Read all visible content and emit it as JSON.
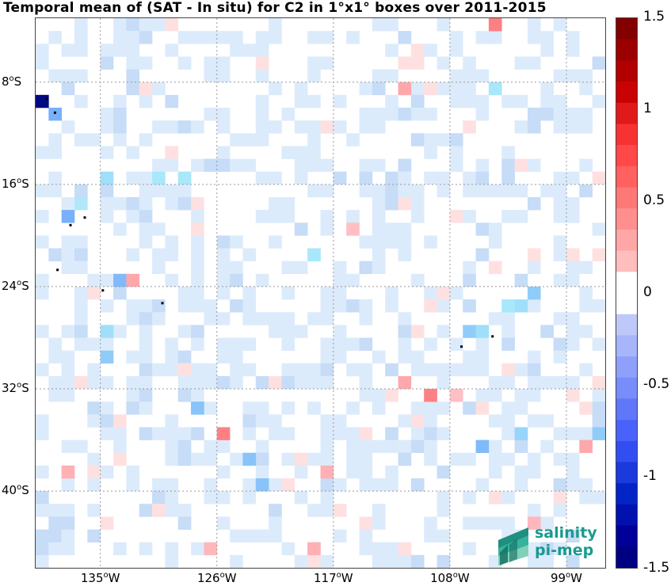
{
  "title": "Temporal mean of (SAT - In situ) for C2 in 1°x1° boxes over 2011-2015",
  "map": {
    "lon_range": [
      -140,
      -96
    ],
    "lat_range": [
      -46,
      -3
    ],
    "lon_ticks": [
      {
        "value": -135,
        "label": "135",
        "hemi": "W"
      },
      {
        "value": -126,
        "label": "126",
        "hemi": "W"
      },
      {
        "value": -117,
        "label": "117",
        "hemi": "W"
      },
      {
        "value": -108,
        "label": "108",
        "hemi": "W"
      },
      {
        "value": -99,
        "label": "99",
        "hemi": "W"
      }
    ],
    "lat_ticks": [
      {
        "value": -8,
        "label": "8",
        "hemi": "S"
      },
      {
        "value": -16,
        "label": "16",
        "hemi": "S"
      },
      {
        "value": -24,
        "label": "24",
        "hemi": "S"
      },
      {
        "value": -32,
        "label": "32",
        "hemi": "S"
      },
      {
        "value": -40,
        "label": "40",
        "hemi": "S"
      }
    ],
    "degree_symbol": "o",
    "grid": "dotted"
  },
  "colorbar": {
    "min": -1.5,
    "max": 1.5,
    "ticks": [
      {
        "value": 1.5,
        "label": "1.5"
      },
      {
        "value": 1,
        "label": "1"
      },
      {
        "value": 0.5,
        "label": "0.5"
      },
      {
        "value": 0,
        "label": "0"
      },
      {
        "value": -0.5,
        "label": "-0.5"
      },
      {
        "value": -1,
        "label": "-1"
      },
      {
        "value": -1.5,
        "label": "-1.5"
      }
    ],
    "colormap": "blue-white-red"
  },
  "logo": {
    "line1": "salinity",
    "line2": "pi-mep",
    "color": "#1a9a8e"
  },
  "chart_data": {
    "type": "heatmap",
    "cells": [
      {
        "lon": -139.5,
        "lat": -9.5,
        "value": -1.5
      },
      {
        "lon": -138.5,
        "lat": -10.5,
        "value": -0.6
      },
      {
        "lon": -137.5,
        "lat": -18.5,
        "value": -0.6
      },
      {
        "lon": -136.5,
        "lat": -17.5,
        "value": -0.25
      },
      {
        "lon": -134.5,
        "lat": -15.5,
        "value": -0.35
      },
      {
        "lon": -133.5,
        "lat": -23.5,
        "value": -0.55
      },
      {
        "lon": -132.5,
        "lat": -23.5,
        "value": 0.3
      },
      {
        "lon": -130.5,
        "lat": -15.5,
        "value": -0.3
      },
      {
        "lon": -128.5,
        "lat": -15.5,
        "value": -0.3
      },
      {
        "lon": -127.5,
        "lat": -33.5,
        "value": -0.5
      },
      {
        "lon": -125.5,
        "lat": -35.5,
        "value": 0.55
      },
      {
        "lon": -123.5,
        "lat": -37.5,
        "value": -0.5
      },
      {
        "lon": -122.5,
        "lat": -39.5,
        "value": -0.5
      },
      {
        "lon": -134.5,
        "lat": -29.5,
        "value": -0.45
      },
      {
        "lon": -134.5,
        "lat": -27.5,
        "value": -0.35
      },
      {
        "lon": -118.5,
        "lat": -21.5,
        "value": -0.3
      },
      {
        "lon": -115.5,
        "lat": -19.5,
        "value": 0.15
      },
      {
        "lon": -111.5,
        "lat": -31.5,
        "value": 0.3
      },
      {
        "lon": -109.5,
        "lat": -32.5,
        "value": 0.55
      },
      {
        "lon": -107.5,
        "lat": -32.5,
        "value": 0.15
      },
      {
        "lon": -106.5,
        "lat": -27.5,
        "value": -0.45
      },
      {
        "lon": -105.5,
        "lat": -27.5,
        "value": -0.35
      },
      {
        "lon": -105.5,
        "lat": -36.5,
        "value": -0.55
      },
      {
        "lon": -104.5,
        "lat": -3.5,
        "value": 0.55
      },
      {
        "lon": -111.5,
        "lat": -8.5,
        "value": 0.3
      },
      {
        "lon": -104.5,
        "lat": -8.5,
        "value": -0.3
      },
      {
        "lon": -103.5,
        "lat": -25.5,
        "value": -0.3
      },
      {
        "lon": -102.5,
        "lat": -25.5,
        "value": -0.35
      },
      {
        "lon": -102.5,
        "lat": -35.5,
        "value": -0.4
      },
      {
        "lon": -101.5,
        "lat": -24.5,
        "value": -0.45
      },
      {
        "lon": -96.5,
        "lat": -35.5,
        "value": -0.45
      },
      {
        "lon": -97.5,
        "lat": -36.5,
        "value": 0.3
      },
      {
        "lon": -101.5,
        "lat": -42.5,
        "value": 0.2
      },
      {
        "lon": -117.5,
        "lat": -38.5,
        "value": 0.25
      },
      {
        "lon": -126.5,
        "lat": -44.5,
        "value": 0.2
      },
      {
        "lon": -118.5,
        "lat": -44.5,
        "value": 0.25
      },
      {
        "lon": -137.5,
        "lat": -38.5,
        "value": 0.25
      }
    ],
    "background_range": [
      -0.1,
      0.1
    ]
  }
}
